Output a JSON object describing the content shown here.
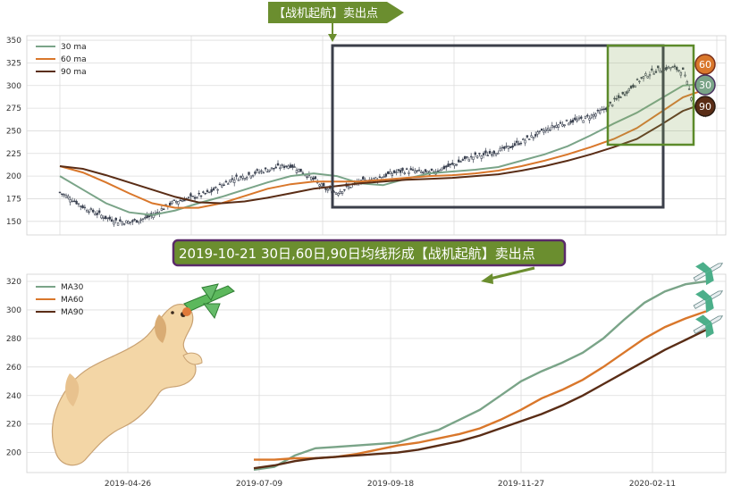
{
  "chart_data": [
    {
      "type": "line",
      "panel": "candlestick price with moving averages",
      "ylim": [
        135,
        355
      ],
      "yticks": [
        150,
        175,
        200,
        225,
        250,
        275,
        300,
        325,
        350
      ],
      "grid": true,
      "legend_position": "top-left",
      "series": [
        {
          "name": "30 ma",
          "color": "#7aa488",
          "x": [
            0,
            10,
            20,
            30,
            40,
            50,
            60,
            70,
            80,
            90,
            100,
            110,
            120,
            130,
            140,
            150,
            160,
            170,
            180,
            190,
            200,
            210,
            220,
            230,
            240,
            250,
            260,
            270,
            280
          ],
          "values": [
            200,
            185,
            170,
            160,
            157,
            162,
            170,
            177,
            185,
            193,
            200,
            203,
            200,
            192,
            190,
            197,
            203,
            205,
            207,
            210,
            217,
            224,
            233,
            245,
            258,
            270,
            285,
            300,
            302
          ]
        },
        {
          "name": "60 ma",
          "color": "#d9772b",
          "x": [
            0,
            10,
            20,
            30,
            40,
            50,
            60,
            70,
            80,
            90,
            100,
            110,
            120,
            130,
            140,
            150,
            160,
            170,
            180,
            190,
            200,
            210,
            220,
            230,
            240,
            250,
            260,
            270,
            280
          ],
          "values": [
            211,
            204,
            193,
            181,
            170,
            165,
            165,
            170,
            178,
            186,
            191,
            194,
            194,
            194,
            196,
            198,
            200,
            201,
            203,
            206,
            211,
            217,
            224,
            232,
            241,
            253,
            270,
            287,
            296
          ]
        },
        {
          "name": "90 ma",
          "color": "#5a2d16",
          "x": [
            0,
            10,
            20,
            30,
            40,
            50,
            60,
            70,
            80,
            90,
            100,
            110,
            120,
            130,
            140,
            150,
            160,
            170,
            180,
            190,
            200,
            210,
            220,
            230,
            240,
            250,
            260,
            270,
            280
          ],
          "values": [
            211,
            208,
            201,
            193,
            185,
            177,
            171,
            170,
            172,
            176,
            181,
            186,
            189,
            192,
            194,
            196,
            197,
            198,
            200,
            202,
            206,
            211,
            217,
            224,
            232,
            241,
            256,
            272,
            281
          ]
        },
        {
          "name": "close",
          "color": "#3a4150",
          "x": [
            0,
            5,
            10,
            15,
            20,
            25,
            30,
            35,
            40,
            45,
            50,
            55,
            60,
            65,
            70,
            75,
            80,
            85,
            90,
            95,
            100,
            105,
            110,
            115,
            120,
            125,
            130,
            135,
            140,
            145,
            150,
            155,
            160,
            165,
            170,
            175,
            180,
            185,
            190,
            195,
            200,
            205,
            210,
            215,
            220,
            225,
            230,
            235,
            240,
            245,
            250,
            255,
            260,
            265,
            270,
            275,
            280
          ],
          "values": [
            182,
            175,
            166,
            160,
            154,
            150,
            149,
            152,
            156,
            165,
            172,
            175,
            178,
            182,
            190,
            197,
            200,
            204,
            207,
            210,
            212,
            205,
            196,
            186,
            182,
            188,
            193,
            196,
            200,
            204,
            206,
            205,
            203,
            208,
            212,
            218,
            222,
            224,
            228,
            232,
            238,
            244,
            250,
            256,
            260,
            262,
            266,
            272,
            282,
            292,
            304,
            313,
            318,
            320,
            316,
            278,
            268
          ]
        }
      ]
    },
    {
      "type": "line",
      "panel": "moving averages zoom",
      "categories": [
        "2019-04-26",
        "2019-07-09",
        "2019-09-18",
        "2019-11-27",
        "2020-02-11"
      ],
      "ylim": [
        186,
        325
      ],
      "yticks": [
        200,
        220,
        240,
        260,
        280,
        300,
        320
      ],
      "grid": true,
      "legend_position": "top-left",
      "series": [
        {
          "name": "MA30",
          "color": "#7aa488",
          "x": [
            0,
            10,
            20,
            30,
            40,
            50,
            60,
            70,
            80,
            90,
            100,
            110,
            120,
            130,
            140,
            150,
            160,
            170,
            180,
            190,
            200,
            210,
            220
          ],
          "values": [
            188,
            190,
            198,
            203,
            204,
            205,
            206,
            207,
            212,
            216,
            223,
            230,
            240,
            250,
            257,
            263,
            270,
            280,
            293,
            305,
            313,
            318,
            320
          ]
        },
        {
          "name": "MA60",
          "color": "#d9772b",
          "x": [
            0,
            10,
            20,
            30,
            40,
            50,
            60,
            70,
            80,
            90,
            100,
            110,
            120,
            130,
            140,
            150,
            160,
            170,
            180,
            190,
            200,
            210,
            220
          ],
          "values": [
            195,
            195,
            196,
            196,
            197,
            199,
            202,
            205,
            207,
            210,
            213,
            217,
            223,
            230,
            238,
            244,
            251,
            260,
            270,
            280,
            288,
            294,
            299
          ]
        },
        {
          "name": "MA90",
          "color": "#5a2d16",
          "x": [
            0,
            10,
            20,
            30,
            40,
            50,
            60,
            70,
            80,
            90,
            100,
            110,
            120,
            130,
            140,
            150,
            160,
            170,
            180,
            190,
            200,
            210,
            220
          ],
          "values": [
            189,
            191,
            194,
            196,
            197,
            198,
            199,
            200,
            202,
            205,
            208,
            212,
            217,
            222,
            227,
            233,
            240,
            248,
            256,
            264,
            272,
            279,
            286
          ]
        }
      ]
    }
  ],
  "annotations": {
    "top_tag": "【战机起航】卖出点",
    "caption": "2019-10-21 30日,60日,90日均线形成【战机起航】卖出点",
    "badges": [
      "60",
      "30",
      "90"
    ]
  },
  "colors": {
    "ma30": "#7aa488",
    "ma60": "#d9772b",
    "ma90": "#5a2d16",
    "candle": "#3a4150",
    "highlight_box": "#3b3f4a",
    "zoom_box": "#5c8a2a",
    "tag_bg": "#6b8e2f",
    "caption_bg": "#6b8e2f",
    "caption_border": "#5a2a6a"
  }
}
